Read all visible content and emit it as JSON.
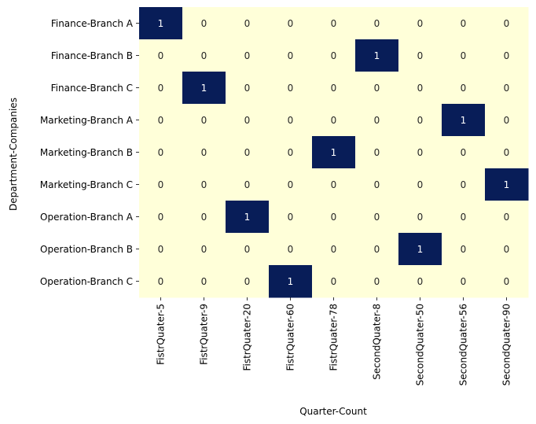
{
  "chart_data": {
    "type": "heatmap",
    "title": "",
    "xlabel": "Quarter-Count",
    "ylabel": "Department-Companies",
    "x_categories": [
      "FistrQuater-5",
      "FistrQuater-9",
      "FistrQuater-20",
      "FistrQuater-60",
      "FistrQuater-78",
      "SecondQuater-8",
      "SecondQuater-50",
      "SecondQuater-56",
      "SecondQuater-90"
    ],
    "y_categories": [
      "Finance-Branch A",
      "Finance-Branch B",
      "Finance-Branch C",
      "Marketing-Branch A",
      "Marketing-Branch B",
      "Marketing-Branch C",
      "Operation-Branch A",
      "Operation-Branch B",
      "Operation-Branch C"
    ],
    "values": [
      [
        1,
        0,
        0,
        0,
        0,
        0,
        0,
        0,
        0
      ],
      [
        0,
        0,
        0,
        0,
        0,
        1,
        0,
        0,
        0
      ],
      [
        0,
        1,
        0,
        0,
        0,
        0,
        0,
        0,
        0
      ],
      [
        0,
        0,
        0,
        0,
        0,
        0,
        0,
        1,
        0
      ],
      [
        0,
        0,
        0,
        0,
        1,
        0,
        0,
        0,
        0
      ],
      [
        0,
        0,
        0,
        0,
        0,
        0,
        0,
        0,
        1
      ],
      [
        0,
        0,
        1,
        0,
        0,
        0,
        0,
        0,
        0
      ],
      [
        0,
        0,
        0,
        0,
        0,
        0,
        1,
        0,
        0
      ],
      [
        0,
        0,
        0,
        1,
        0,
        0,
        0,
        0,
        0
      ]
    ],
    "vmin": 0,
    "vmax": 1,
    "colors": {
      "low": "#ffffd9",
      "high": "#081d58",
      "low_text": "#262626",
      "high_text": "#ffffff"
    },
    "annotate": true,
    "colorbar": false,
    "grid": false
  }
}
